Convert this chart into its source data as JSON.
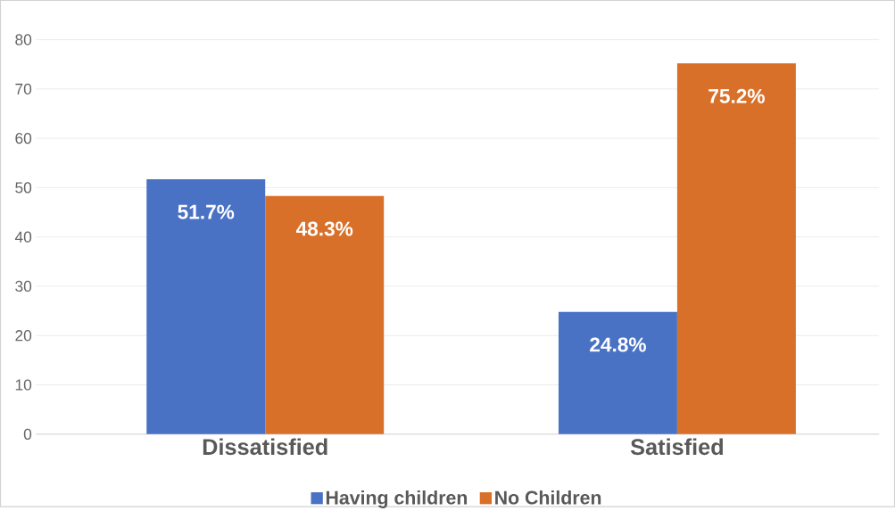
{
  "chart_data": {
    "type": "bar",
    "categories": [
      "Dissatisfied",
      "Satisfied"
    ],
    "series": [
      {
        "name": "Having children",
        "color": "#4a72c4",
        "values": [
          51.7,
          24.8
        ],
        "value_labels": [
          "51.7%",
          "24.8%"
        ]
      },
      {
        "name": "No Children",
        "color": "#d9702a",
        "values": [
          48.3,
          75.2
        ],
        "value_labels": [
          "48.3%",
          "75.2%"
        ]
      }
    ],
    "ylim": [
      0,
      80
    ],
    "yticks": [
      0,
      10,
      20,
      30,
      40,
      50,
      60,
      70,
      80
    ],
    "grid": "y",
    "legend": "bottom"
  }
}
